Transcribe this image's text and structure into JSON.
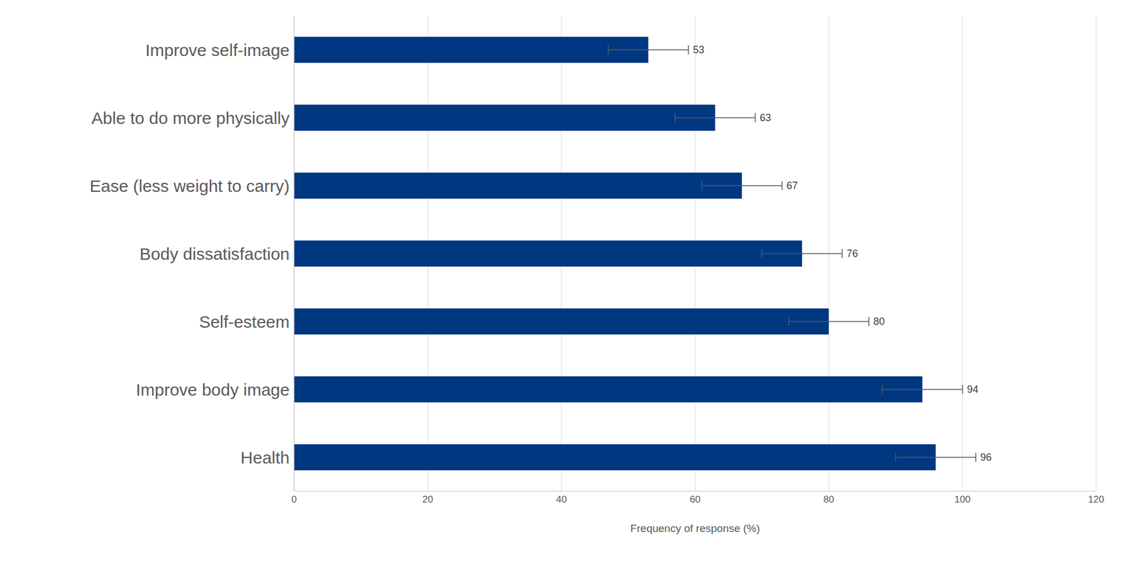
{
  "chart_data": {
    "type": "bar",
    "orientation": "horizontal",
    "x_label": "Frequency of response (%)",
    "categories": [
      "Improve self-image",
      "Able to do more physically",
      "Ease (less weight to carry)",
      "Body dissatisfaction",
      "Self-esteem",
      "Improve body image",
      "Health"
    ],
    "values": [
      53,
      63,
      67,
      76,
      80,
      94,
      96
    ],
    "errors": [
      6,
      6,
      6,
      6,
      6,
      6,
      6
    ],
    "color": "#003781",
    "xlim": [
      0,
      120
    ],
    "xticks": [
      0,
      20,
      40,
      60,
      80,
      100,
      120
    ],
    "grid": true,
    "data_labels": true
  }
}
